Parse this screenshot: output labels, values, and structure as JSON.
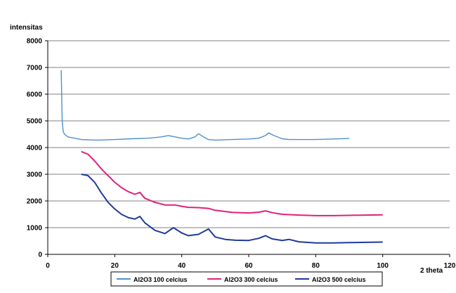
{
  "chart_data": {
    "type": "line",
    "title": "",
    "ylabel": "intensitas",
    "xlabel": "2 theta",
    "xlim": [
      0,
      120
    ],
    "ylim": [
      0,
      8000
    ],
    "x_ticks": [
      "0",
      "20",
      "40",
      "60",
      "80",
      "100",
      "120"
    ],
    "y_ticks": [
      "0",
      "1000",
      "2000",
      "3000",
      "4000",
      "5000",
      "6000",
      "7000",
      "8000"
    ],
    "grid": "horizontal",
    "legend_position": "bottom",
    "series": [
      {
        "name": "Al2O3  100 celcius",
        "color": "#4f8fd0",
        "x": [
          4,
          4.3,
          4.6,
          5,
          6,
          8,
          10,
          12,
          15,
          20,
          25,
          30,
          34,
          36,
          38,
          40,
          42,
          44,
          45,
          46.5,
          48,
          50,
          55,
          60,
          63,
          65,
          66,
          67.5,
          70,
          72,
          75,
          80,
          85,
          90
        ],
        "y": [
          6900,
          5000,
          4600,
          4500,
          4400,
          4350,
          4300,
          4290,
          4280,
          4300,
          4330,
          4350,
          4400,
          4450,
          4400,
          4350,
          4320,
          4400,
          4520,
          4400,
          4300,
          4280,
          4300,
          4320,
          4350,
          4450,
          4550,
          4450,
          4330,
          4300,
          4300,
          4300,
          4320,
          4340
        ]
      },
      {
        "name": "Al2O3  300 celcius",
        "color": "#e0207a",
        "x": [
          10,
          12,
          14,
          16,
          18,
          20,
          22,
          24,
          26,
          27.5,
          29,
          32,
          35,
          38,
          40,
          42,
          45,
          48,
          50,
          55,
          60,
          63,
          65,
          67,
          70,
          75,
          80,
          85,
          90,
          95,
          100
        ],
        "y": [
          3850,
          3750,
          3500,
          3200,
          2950,
          2700,
          2500,
          2350,
          2250,
          2320,
          2100,
          1950,
          1850,
          1850,
          1800,
          1760,
          1750,
          1720,
          1650,
          1570,
          1550,
          1580,
          1630,
          1560,
          1500,
          1470,
          1450,
          1450,
          1460,
          1470,
          1480
        ]
      },
      {
        "name": "Al2O3  500 celcius",
        "color": "#1e3a9a",
        "x": [
          10,
          12,
          14,
          16,
          18,
          20,
          22,
          24,
          26,
          27.5,
          29,
          32,
          35,
          37.5,
          40,
          42,
          45,
          48,
          50,
          53,
          56,
          60,
          63,
          65,
          67,
          70,
          72,
          75,
          80,
          85,
          90,
          95,
          100
        ],
        "y": [
          3000,
          2950,
          2700,
          2300,
          1950,
          1700,
          1500,
          1380,
          1320,
          1420,
          1180,
          900,
          780,
          1000,
          800,
          700,
          750,
          950,
          650,
          560,
          530,
          520,
          600,
          700,
          580,
          520,
          560,
          470,
          430,
          430,
          440,
          450,
          460
        ]
      }
    ]
  }
}
